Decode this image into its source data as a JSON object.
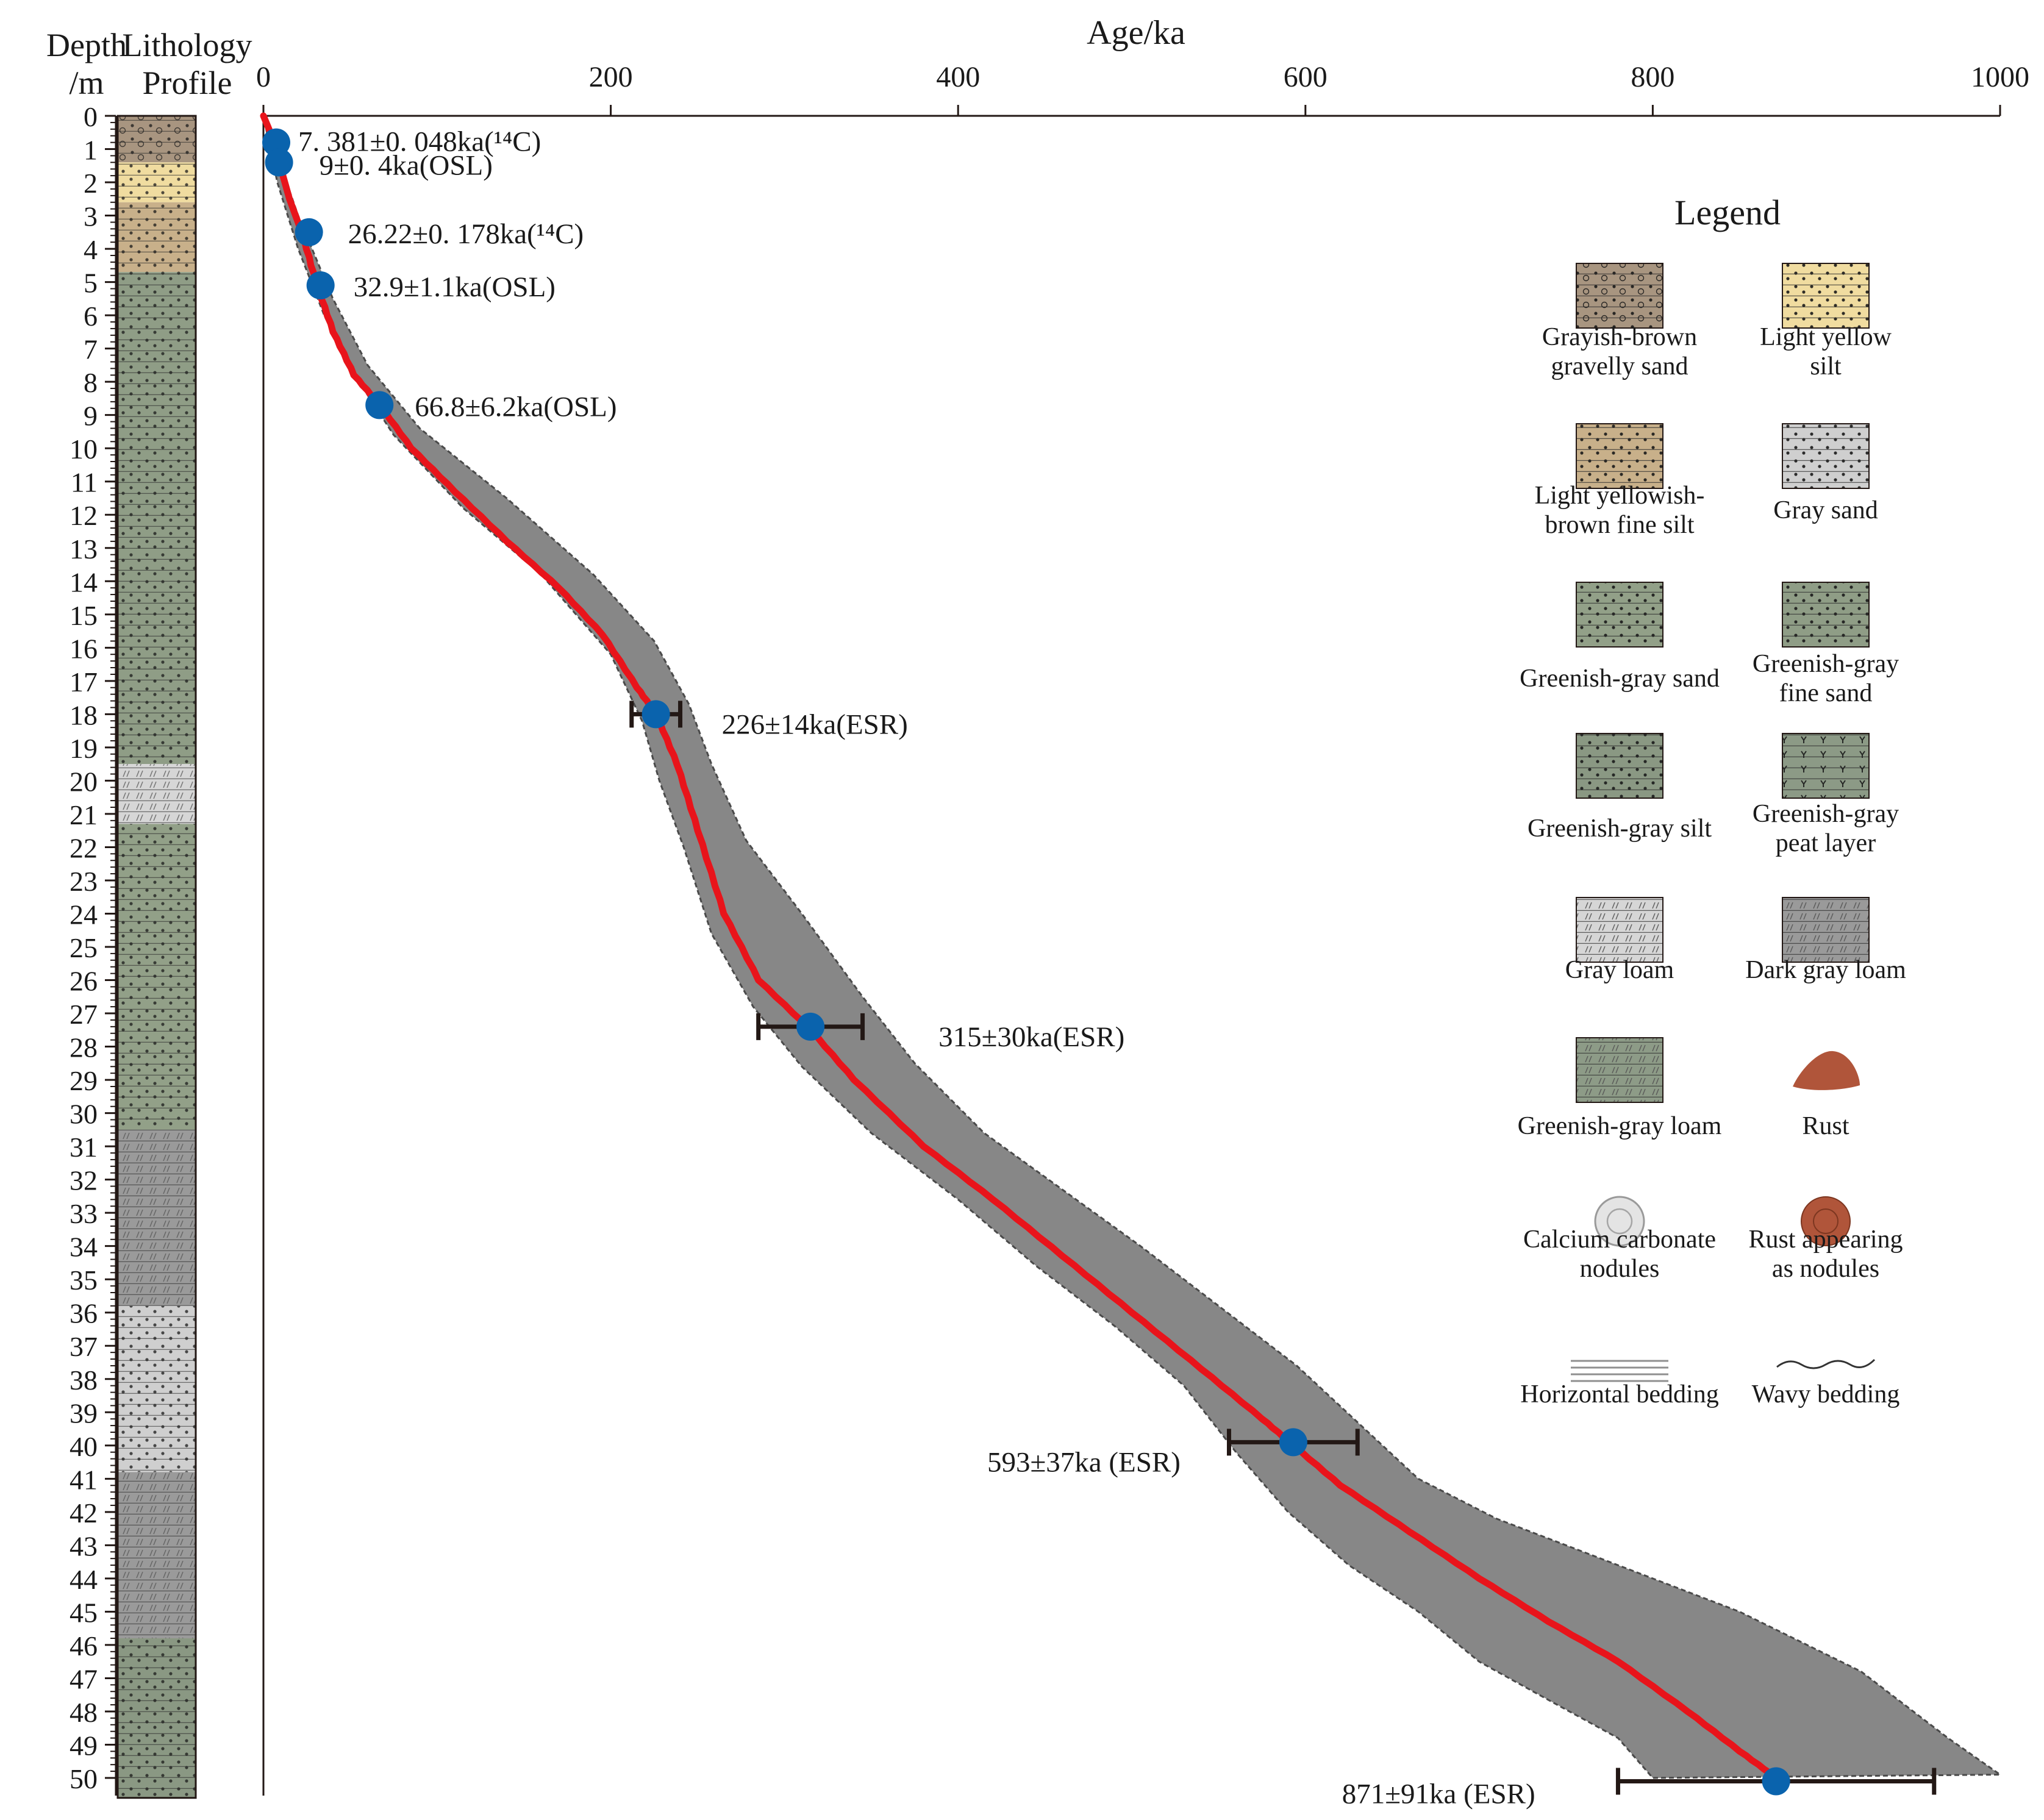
{
  "header": {
    "depth_label_1": "Depth",
    "depth_label_2": "/m",
    "lith_label_1": "Lithology",
    "lith_label_2": "Profile"
  },
  "chart_data": {
    "type": "line",
    "title": "",
    "xlabel": "Age/ka",
    "ylabel": "Depth /m",
    "xlim": [
      0,
      1000
    ],
    "ylim": [
      50,
      0
    ],
    "x_ticks": [
      "0",
      "200",
      "400",
      "600",
      "800",
      "1000"
    ],
    "depth_ticks": [
      "0",
      "1",
      "2",
      "3",
      "4",
      "5",
      "6",
      "7",
      "8",
      "9",
      "10",
      "11",
      "12",
      "13",
      "14",
      "15",
      "16",
      "17",
      "18",
      "19",
      "20",
      "21",
      "22",
      "23",
      "24",
      "25",
      "26",
      "27",
      "28",
      "29",
      "30",
      "31",
      "32",
      "33",
      "34",
      "35",
      "36",
      "37",
      "38",
      "39",
      "40",
      "41",
      "42",
      "43",
      "44",
      "45",
      "46",
      "47",
      "48",
      "49",
      "50"
    ],
    "age_model": {
      "points": [
        [
          0,
          0
        ],
        [
          4,
          0.5
        ],
        [
          8,
          1.2
        ],
        [
          15,
          2.5
        ],
        [
          22,
          3.5
        ],
        [
          30,
          5
        ],
        [
          40,
          6.5
        ],
        [
          52,
          7.8
        ],
        [
          66.8,
          8.7
        ],
        [
          85,
          10
        ],
        [
          110,
          11.3
        ],
        [
          140,
          12.8
        ],
        [
          170,
          14.2
        ],
        [
          195,
          15.6
        ],
        [
          215,
          17.2
        ],
        [
          226,
          18
        ],
        [
          238,
          19.5
        ],
        [
          250,
          21.5
        ],
        [
          265,
          24
        ],
        [
          285,
          26
        ],
        [
          315,
          27.5
        ],
        [
          340,
          29
        ],
        [
          380,
          31
        ],
        [
          420,
          32.6
        ],
        [
          460,
          34.3
        ],
        [
          500,
          36
        ],
        [
          540,
          37.7
        ],
        [
          575,
          39.2
        ],
        [
          593,
          40
        ],
        [
          620,
          41.2
        ],
        [
          660,
          42.6
        ],
        [
          700,
          44
        ],
        [
          740,
          45.3
        ],
        [
          780,
          46.5
        ],
        [
          820,
          48
        ],
        [
          850,
          49.2
        ],
        [
          871,
          50
        ]
      ],
      "upper": [
        [
          0,
          0
        ],
        [
          20,
          3
        ],
        [
          40,
          5.5
        ],
        [
          60,
          7.5
        ],
        [
          90,
          9.4
        ],
        [
          140,
          11.5
        ],
        [
          190,
          13.8
        ],
        [
          225,
          15.8
        ],
        [
          245,
          17.7
        ],
        [
          258,
          19.5
        ],
        [
          278,
          21.8
        ],
        [
          310,
          24
        ],
        [
          345,
          26.5
        ],
        [
          375,
          28.5
        ],
        [
          415,
          30.6
        ],
        [
          460,
          32.3
        ],
        [
          505,
          34
        ],
        [
          550,
          35.8
        ],
        [
          595,
          37.6
        ],
        [
          630,
          39.3
        ],
        [
          665,
          41
        ],
        [
          710,
          42.2
        ],
        [
          770,
          43.4
        ],
        [
          850,
          45
        ],
        [
          920,
          46.8
        ],
        [
          970,
          48.8
        ],
        [
          1000,
          49.9
        ]
      ],
      "lower": [
        [
          0,
          0
        ],
        [
          8,
          2
        ],
        [
          20,
          4
        ],
        [
          35,
          6
        ],
        [
          50,
          7.6
        ],
        [
          75,
          9.6
        ],
        [
          115,
          11.8
        ],
        [
          160,
          13.8
        ],
        [
          200,
          16.2
        ],
        [
          218,
          18.2
        ],
        [
          228,
          20
        ],
        [
          242,
          22
        ],
        [
          258,
          24.6
        ],
        [
          282,
          26.8
        ],
        [
          310,
          28.6
        ],
        [
          350,
          30.6
        ],
        [
          400,
          32.6
        ],
        [
          445,
          34.6
        ],
        [
          490,
          36.4
        ],
        [
          530,
          38.2
        ],
        [
          560,
          40.2
        ],
        [
          590,
          42
        ],
        [
          625,
          43.6
        ],
        [
          665,
          45
        ],
        [
          700,
          46.5
        ],
        [
          745,
          47.8
        ],
        [
          780,
          48.8
        ],
        [
          800,
          50
        ]
      ]
    },
    "series": [
      {
        "age": 7.381,
        "error": 0.048,
        "depth": 0.8,
        "method": "14C",
        "label": "7. 381±0. 048ka(¹⁴C)"
      },
      {
        "age": 9,
        "error": 0.4,
        "depth": 1.4,
        "method": "OSL",
        "label": "9±0. 4ka(OSL)"
      },
      {
        "age": 26.22,
        "error": 0.178,
        "depth": 3.5,
        "method": "14C",
        "label": "26.22±0. 178ka(¹⁴C)"
      },
      {
        "age": 32.9,
        "error": 1.1,
        "depth": 5.1,
        "method": "OSL",
        "label": "32.9±1.1ka(OSL)"
      },
      {
        "age": 66.8,
        "error": 6.2,
        "depth": 8.7,
        "method": "OSL",
        "label": "66.8±6.2ka(OSL)"
      },
      {
        "age": 226,
        "error": 14,
        "depth": 18,
        "method": "ESR",
        "label": "226±14ka(ESR)"
      },
      {
        "age": 315,
        "error": 30,
        "depth": 27.4,
        "method": "ESR",
        "label": "315±30ka(ESR)"
      },
      {
        "age": 593,
        "error": 37,
        "depth": 39.9,
        "method": "ESR",
        "label": "593±37ka (ESR)"
      },
      {
        "age": 871,
        "error": 91,
        "depth": 50.1,
        "method": "ESR",
        "label": "871±91ka (ESR)"
      }
    ],
    "lithology_column": [
      {
        "top": 0,
        "bottom": 1.4,
        "type": "grayish-brown-gravelly-sand"
      },
      {
        "top": 1.4,
        "bottom": 2.6,
        "type": "light-yellow-silt"
      },
      {
        "top": 2.6,
        "bottom": 4.7,
        "type": "light-yellowish-brown-fine-silt"
      },
      {
        "top": 4.7,
        "bottom": 19.5,
        "type": "greenish-gray-fine-sand"
      },
      {
        "top": 19.5,
        "bottom": 21.3,
        "type": "gray-loam"
      },
      {
        "top": 21.3,
        "bottom": 30.5,
        "type": "greenish-gray-sand"
      },
      {
        "top": 30.5,
        "bottom": 35.8,
        "type": "dark-gray-loam"
      },
      {
        "top": 35.8,
        "bottom": 40.8,
        "type": "gray-sand"
      },
      {
        "top": 40.8,
        "bottom": 45.8,
        "type": "dark-gray-loam"
      },
      {
        "top": 45.8,
        "bottom": 50.6,
        "type": "greenish-gray-silt"
      }
    ],
    "legend": {
      "title": "Legend",
      "items": [
        {
          "line1": "Grayish-brown",
          "line2": "gravelly sand",
          "swatch": "grayish-brown-gravelly-sand"
        },
        {
          "line1": "Light yellow",
          "line2": "silt",
          "swatch": "light-yellow-silt"
        },
        {
          "line1": "Light yellowish-",
          "line2": "brown fine silt",
          "swatch": "light-yellowish-brown-fine-silt"
        },
        {
          "line1": "Gray sand",
          "line2": "",
          "swatch": "gray-sand"
        },
        {
          "line1": "Greenish-gray sand",
          "line2": "",
          "swatch": "greenish-gray-sand"
        },
        {
          "line1": "Greenish-gray",
          "line2": "fine sand",
          "swatch": "greenish-gray-fine-sand"
        },
        {
          "line1": "Greenish-gray silt",
          "line2": "",
          "swatch": "greenish-gray-silt"
        },
        {
          "line1": "Greenish-gray",
          "line2": "peat layer",
          "swatch": "greenish-gray-peat-layer"
        },
        {
          "line1": "Gray loam",
          "line2": "",
          "swatch": "gray-loam"
        },
        {
          "line1": "Dark gray loam",
          "line2": "",
          "swatch": "dark-gray-loam"
        },
        {
          "line1": "Greenish-gray loam",
          "line2": "",
          "swatch": "greenish-gray-loam"
        },
        {
          "line1": "Rust",
          "line2": "",
          "swatch": "rust"
        },
        {
          "line1": "Calcium carbonate",
          "line2": "nodules",
          "swatch": "calcium-carbonate-nodules"
        },
        {
          "line1": "Rust appearing",
          "line2": "as nodules",
          "swatch": "rust-nodules"
        },
        {
          "line1": "Horizontal bedding",
          "line2": "",
          "swatch": "horizontal-bedding"
        },
        {
          "line1": "Wavy bedding",
          "line2": "",
          "swatch": "wavy-bedding"
        }
      ]
    },
    "colors": {
      "age_model": "#e8141b",
      "uncertainty_band": "#878787",
      "band_edge": "#4a4a4a",
      "date_point": "#0a63ad",
      "error_bar": "#231815",
      "grayish-brown-gravelly-sand": "#a89580",
      "light-yellow-silt": "#f0dca0",
      "light-yellowish-brown-fine-silt": "#c8b08a",
      "gray-sand": "#cfcfcf",
      "greenish-gray-sand": "#92a088",
      "greenish-gray-fine-sand": "#8f9d86",
      "greenish-gray-silt": "#8a9883",
      "greenish-gray-peat-layer": "#8c9a86",
      "gray-loam": "#d6d6d6",
      "dark-gray-loam": "#9a9a9a",
      "greenish-gray-loam": "#8d9b87",
      "rust": "#b0553a",
      "rust-nodules": "#b0553a"
    }
  }
}
